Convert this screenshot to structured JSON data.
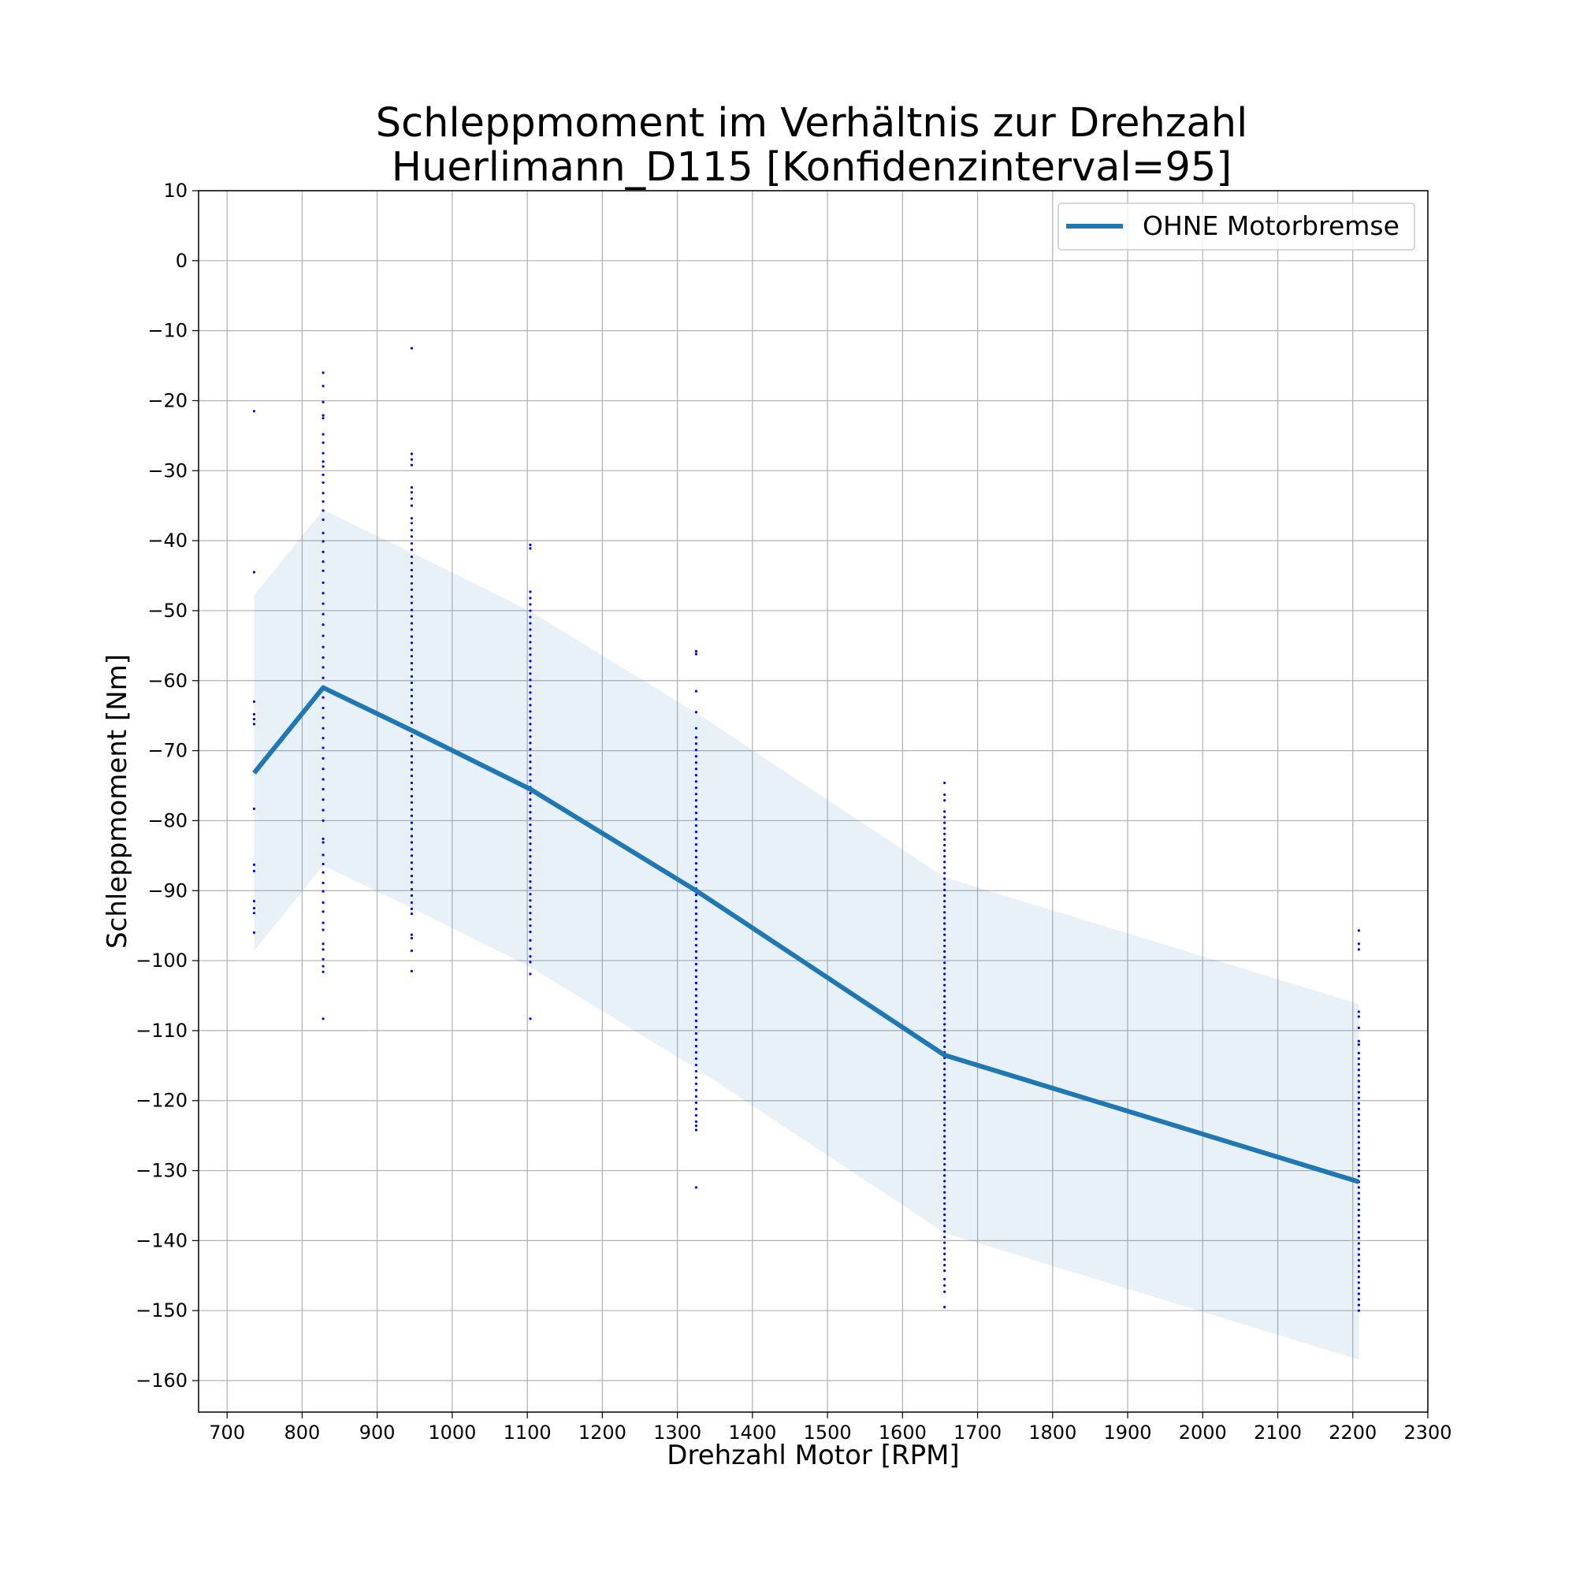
{
  "chart_data": {
    "type": "line",
    "title": "Schleppmoment im Verhältnis zur Drehzahl",
    "subtitle": "Huerlimann_D115 [Konfidenzinterval=95]",
    "xlabel": "Drehzahl Motor [RPM]",
    "ylabel": "Schleppmoment [Nm]",
    "xlim": [
      662,
      2300
    ],
    "ylim": [
      -164.5,
      10
    ],
    "xticks": [
      700,
      800,
      900,
      1000,
      1100,
      1200,
      1300,
      1400,
      1500,
      1600,
      1700,
      1800,
      1900,
      2000,
      2100,
      2200,
      2300
    ],
    "yticks": [
      10,
      0,
      -10,
      -20,
      -30,
      -40,
      -50,
      -60,
      -70,
      -80,
      -90,
      -100,
      -110,
      -120,
      -130,
      -140,
      -150,
      -160
    ],
    "grid": true,
    "legend_position": "top-right",
    "series": [
      {
        "name": "OHNE Motorbremse",
        "color": "#1f77b4",
        "x": [
          736,
          828,
          946,
          1104,
          1325,
          1656,
          2208
        ],
        "y": [
          -73.2,
          -61.0,
          -67.1,
          -75.5,
          -90.0,
          -113.5,
          -131.6
        ],
        "ci_upper": [
          -47.8,
          -35.6,
          -41.7,
          -50.1,
          -64.6,
          -88.1,
          -106.2
        ],
        "ci_lower": [
          -98.6,
          -86.4,
          -92.5,
          -100.9,
          -115.4,
          -138.9,
          -157.0
        ]
      }
    ],
    "scatter": {
      "color": "#0000ff",
      "points": [
        {
          "x": 736,
          "y": [
            -21.5,
            -44.5,
            -63.0,
            -64.8,
            -65.5,
            -66.2,
            -78.3,
            -86.3,
            -87.2,
            -91.5,
            -92.5,
            -93.2,
            -96.0
          ]
        },
        {
          "x": 828,
          "y": [
            -16.0,
            -17.9,
            -20.2,
            -22.1,
            -22.5,
            -24.8,
            -26.0,
            -27.5,
            -28.7,
            -29.4,
            -30.6,
            -31.7,
            -33.2,
            -34.4,
            -35.7,
            -37.0,
            -38.9,
            -40.1,
            -41.6,
            -43.0,
            -44.3,
            -46.0,
            -47.5,
            -49.0,
            -50.5,
            -52.0,
            -53.6,
            -55.2,
            -56.7,
            -58.1,
            -59.6,
            -61.0,
            -62.4,
            -63.9,
            -65.3,
            -66.8,
            -68.2,
            -69.6,
            -71.1,
            -72.6,
            -74.1,
            -75.5,
            -77.0,
            -78.5,
            -80.0,
            -82.6,
            -83.1,
            -84.9,
            -86.2,
            -87.4,
            -88.9,
            -90.1,
            -91.7,
            -93.0,
            -94.6,
            -95.6,
            -97.6,
            -98.4,
            -99.8,
            -100.8,
            -101.6,
            -108.3
          ]
        },
        {
          "x": 946,
          "y": [
            -12.5,
            -27.6,
            -28.4,
            -29.2,
            -32.4,
            -33.1,
            -34.0,
            -35.0,
            -36.8,
            -37.5,
            -38.5,
            -39.4,
            -40.4,
            -41.3,
            -42.3,
            -43.2,
            -44.2,
            -45.1,
            -46.1,
            -47.0,
            -48.0,
            -48.9,
            -49.9,
            -50.8,
            -51.8,
            -52.7,
            -53.7,
            -54.6,
            -55.6,
            -56.5,
            -57.5,
            -58.4,
            -59.4,
            -60.3,
            -61.3,
            -62.2,
            -63.2,
            -64.1,
            -65.1,
            -66.0,
            -67.0,
            -67.9,
            -68.9,
            -69.8,
            -70.8,
            -71.7,
            -72.7,
            -73.6,
            -74.6,
            -75.5,
            -76.5,
            -77.4,
            -78.4,
            -79.3,
            -80.3,
            -81.2,
            -82.2,
            -83.1,
            -84.1,
            -85.0,
            -86.0,
            -86.9,
            -87.9,
            -88.8,
            -89.8,
            -90.7,
            -91.7,
            -92.6,
            -93.3,
            -96.3,
            -96.8,
            -98.6,
            -101.5
          ]
        },
        {
          "x": 1104,
          "y": [
            -40.6,
            -41.1,
            -47.3,
            -48.2,
            -49.1,
            -50.0,
            -50.9,
            -51.8,
            -52.7,
            -53.6,
            -54.5,
            -55.4,
            -56.3,
            -57.2,
            -58.1,
            -59.0,
            -59.9,
            -60.8,
            -61.7,
            -62.6,
            -63.5,
            -64.4,
            -65.3,
            -66.2,
            -67.1,
            -68.0,
            -68.9,
            -69.8,
            -70.7,
            -71.6,
            -72.5,
            -73.4,
            -74.3,
            -75.2,
            -76.1,
            -77.0,
            -77.9,
            -78.8,
            -79.7,
            -80.6,
            -81.5,
            -82.4,
            -83.3,
            -84.2,
            -85.1,
            -86.0,
            -86.9,
            -87.8,
            -88.7,
            -89.6,
            -90.5,
            -91.4,
            -92.3,
            -93.2,
            -94.1,
            -95.0,
            -95.9,
            -97.1,
            -98.3,
            -99.4,
            -100.2,
            -101.9,
            -108.3
          ]
        },
        {
          "x": 1325,
          "y": [
            -55.8,
            -56.2,
            -61.5,
            -64.5,
            -66.8,
            -68.1,
            -69.0,
            -69.9,
            -70.8,
            -71.7,
            -72.6,
            -73.5,
            -74.4,
            -75.3,
            -76.2,
            -77.1,
            -78.0,
            -78.9,
            -79.8,
            -80.7,
            -81.6,
            -82.5,
            -83.4,
            -84.3,
            -85.2,
            -86.1,
            -87.0,
            -87.9,
            -88.8,
            -89.7,
            -90.6,
            -91.5,
            -92.4,
            -93.3,
            -94.2,
            -95.1,
            -96.0,
            -96.9,
            -97.8,
            -98.7,
            -99.6,
            -100.5,
            -101.4,
            -102.3,
            -103.2,
            -104.1,
            -105.0,
            -105.9,
            -106.8,
            -107.7,
            -108.6,
            -109.5,
            -110.4,
            -111.3,
            -112.2,
            -113.1,
            -114.0,
            -114.9,
            -115.8,
            -116.7,
            -117.6,
            -118.5,
            -119.4,
            -120.3,
            -121.2,
            -122.1,
            -123.0,
            -123.6,
            -124.2,
            -132.4
          ]
        },
        {
          "x": 1656,
          "y": [
            -74.6,
            -76.3,
            -77.1,
            -78.7,
            -79.5,
            -80.3,
            -81.1,
            -81.9,
            -82.7,
            -83.5,
            -84.3,
            -85.1,
            -85.9,
            -86.7,
            -87.5,
            -88.3,
            -89.1,
            -89.9,
            -90.7,
            -91.5,
            -92.3,
            -93.1,
            -93.9,
            -94.7,
            -95.5,
            -96.3,
            -97.1,
            -97.9,
            -98.7,
            -99.5,
            -100.3,
            -101.1,
            -101.9,
            -102.7,
            -103.5,
            -104.3,
            -105.1,
            -105.9,
            -106.7,
            -107.5,
            -108.3,
            -109.1,
            -109.9,
            -110.7,
            -111.5,
            -112.3,
            -113.1,
            -113.9,
            -114.7,
            -115.5,
            -116.3,
            -117.1,
            -117.9,
            -118.7,
            -119.5,
            -120.3,
            -121.1,
            -121.9,
            -122.7,
            -123.5,
            -124.3,
            -125.1,
            -125.9,
            -126.7,
            -127.5,
            -128.3,
            -129.1,
            -129.9,
            -130.7,
            -131.5,
            -132.3,
            -133.1,
            -133.9,
            -134.7,
            -135.5,
            -136.3,
            -137.1,
            -137.9,
            -138.7,
            -139.5,
            -140.3,
            -141.1,
            -141.9,
            -142.7,
            -143.5,
            -144.3,
            -145.5,
            -146.4,
            -147.3,
            -149.5
          ]
        },
        {
          "x": 2208,
          "y": [
            -95.7,
            -97.6,
            -98.4,
            -107.3,
            -108.0,
            -109.6,
            -111.5,
            -112.0,
            -113.2,
            -114.0,
            -114.8,
            -115.6,
            -116.4,
            -117.2,
            -118.0,
            -118.8,
            -119.6,
            -120.4,
            -121.2,
            -122.0,
            -122.8,
            -123.6,
            -124.4,
            -125.2,
            -126.0,
            -126.8,
            -127.6,
            -128.4,
            -129.2,
            -130.0,
            -130.8,
            -131.6,
            -132.4,
            -133.2,
            -134.0,
            -134.8,
            -135.6,
            -136.4,
            -137.2,
            -138.0,
            -138.8,
            -139.6,
            -140.4,
            -141.2,
            -142.0,
            -142.8,
            -143.6,
            -144.4,
            -145.2,
            -146.0,
            -146.8,
            -147.6,
            -148.4,
            -149.2,
            -150.0
          ]
        }
      ]
    }
  }
}
